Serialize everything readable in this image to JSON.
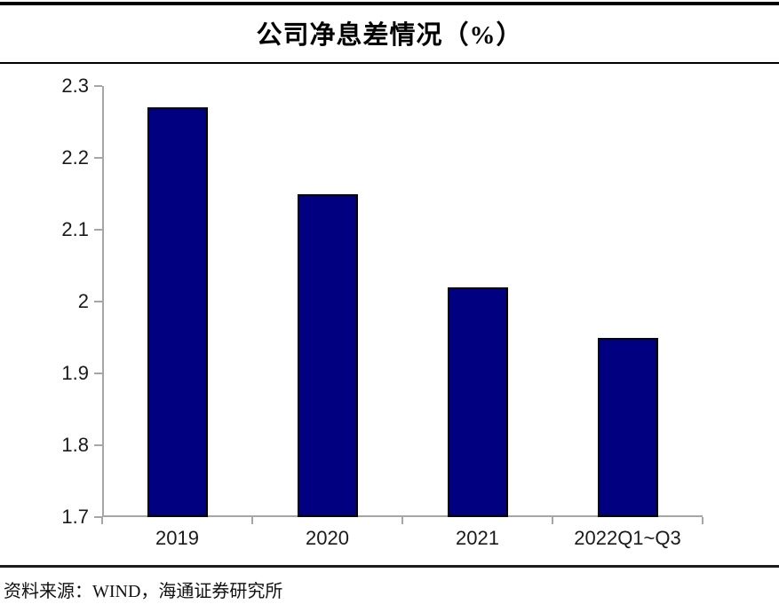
{
  "title": "公司净息差情况（%）",
  "source_note": "资料来源：WIND，海通证券研究所",
  "colors": {
    "bar_fill": "#000080",
    "bar_border": "#000000",
    "axis": "#a6a6a6",
    "rule": "#000000",
    "text": "#1a1a1a"
  },
  "chart_data": {
    "type": "bar",
    "title": "公司净息差情况（%）",
    "categories": [
      "2019",
      "2020",
      "2021",
      "2022Q1~Q3"
    ],
    "values": [
      2.27,
      2.15,
      2.02,
      1.95
    ],
    "xlabel": "",
    "ylabel": "",
    "ylim": [
      1.7,
      2.3
    ],
    "ytick_labels": [
      "2.3",
      "2.2",
      "2.1",
      "2",
      "1.9",
      "1.8",
      "1.7"
    ],
    "yticks": [
      2.3,
      2.2,
      2.1,
      2.0,
      1.9,
      1.8,
      1.7
    ],
    "grid": false,
    "legend": "none",
    "bar_color": "#000080",
    "source": "资料来源：WIND，海通证券研究所"
  }
}
